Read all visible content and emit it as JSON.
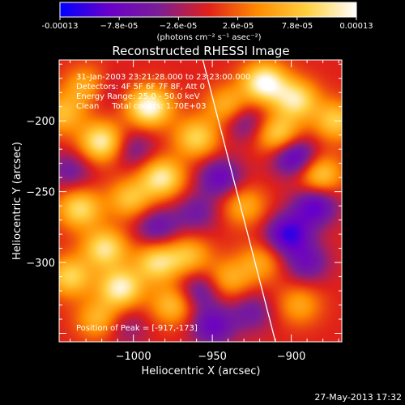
{
  "chart_data": {
    "type": "heatmap",
    "title": "Reconstructed RHESSI Image",
    "xlabel": "Heliocentric X (arcsec)",
    "ylabel": "Heliocentric Y (arcsec)",
    "xlim": [
      -1047,
      -868
    ],
    "ylim": [
      -356,
      -157
    ],
    "x_ticks": [
      -1000,
      -950,
      -900
    ],
    "x_tick_labels": [
      "−1000",
      "−950",
      "−900"
    ],
    "y_ticks": [
      -200,
      -250,
      -300
    ],
    "y_tick_labels": [
      "−200",
      "−250",
      "−300"
    ],
    "colorbar": {
      "range": [
        -0.00013,
        0.00013
      ],
      "tick_labels": [
        "-0.00013",
        "−7.8e-05",
        "−2.6e-05",
        "2.6e-05",
        "7.8e-05",
        "0.00013"
      ],
      "unit_label": "(photons cm⁻² s⁻¹ asec⁻²)",
      "colors": [
        "#0000ff",
        "#6a00c8",
        "#7a1e96",
        "#e0201a",
        "#ff8c00",
        "#ffd040",
        "#ffffff"
      ]
    },
    "annotations": [
      "31-Jan-2003 23:21:28.000 to 23:23:00.000",
      "Detectors: 4F 5F 6F 7F 8F, Att 0",
      "Energy Range: 25.0 - 50.0 keV",
      "Clean     Total counts: 1.70E+03"
    ],
    "peak_label": "Position of Peak = [-917,-173]",
    "peak": [
      -917,
      -173
    ],
    "limb_line": [
      [
        -956,
        -157
      ],
      [
        -910,
        -356
      ]
    ],
    "sources": [
      {
        "x": -1028,
        "y": -176,
        "amp": 0.8
      },
      {
        "x": -990,
        "y": -190,
        "amp": 1.0
      },
      {
        "x": -1020,
        "y": -215,
        "amp": 0.9
      },
      {
        "x": -982,
        "y": -240,
        "amp": 0.85
      },
      {
        "x": -1002,
        "y": -255,
        "amp": 0.6
      },
      {
        "x": -960,
        "y": -212,
        "amp": 0.7
      },
      {
        "x": -917,
        "y": -173,
        "amp": 1.0
      },
      {
        "x": -897,
        "y": -185,
        "amp": 0.8
      },
      {
        "x": -908,
        "y": -210,
        "amp": 0.75
      },
      {
        "x": -882,
        "y": -238,
        "amp": 0.7
      },
      {
        "x": -872,
        "y": -200,
        "amp": 0.65
      },
      {
        "x": -930,
        "y": -260,
        "amp": 0.5
      },
      {
        "x": -1034,
        "y": -262,
        "amp": 0.75
      },
      {
        "x": -1018,
        "y": -290,
        "amp": 0.8
      },
      {
        "x": -1040,
        "y": -310,
        "amp": 0.7
      },
      {
        "x": -1008,
        "y": -318,
        "amp": 0.9
      },
      {
        "x": -985,
        "y": -300,
        "amp": 0.75
      },
      {
        "x": -965,
        "y": -295,
        "amp": 0.55
      },
      {
        "x": -975,
        "y": -330,
        "amp": 0.6
      },
      {
        "x": -1022,
        "y": -340,
        "amp": 0.55
      },
      {
        "x": -940,
        "y": -312,
        "amp": 0.5
      },
      {
        "x": -920,
        "y": -300,
        "amp": 0.45
      },
      {
        "x": -895,
        "y": -330,
        "amp": 0.45
      },
      {
        "x": -940,
        "y": -190,
        "amp": 0.6
      },
      {
        "x": -1045,
        "y": -195,
        "amp": 0.55
      },
      {
        "x": -1022,
        "y": -178,
        "amp": -0.5
      },
      {
        "x": -1000,
        "y": -220,
        "amp": -0.4
      },
      {
        "x": -985,
        "y": -275,
        "amp": -0.5
      },
      {
        "x": -945,
        "y": -240,
        "amp": -0.6
      },
      {
        "x": -930,
        "y": -200,
        "amp": -0.5
      },
      {
        "x": -898,
        "y": -225,
        "amp": -0.8
      },
      {
        "x": -885,
        "y": -260,
        "amp": -0.7
      },
      {
        "x": -902,
        "y": -280,
        "amp": -0.8
      },
      {
        "x": -958,
        "y": -320,
        "amp": -0.5
      },
      {
        "x": -950,
        "y": -345,
        "amp": -0.6
      },
      {
        "x": -925,
        "y": -335,
        "amp": -0.4
      },
      {
        "x": -890,
        "y": -300,
        "amp": -0.5
      },
      {
        "x": -1040,
        "y": -235,
        "amp": -0.4
      },
      {
        "x": -1005,
        "y": -345,
        "amp": -0.3
      },
      {
        "x": -960,
        "y": -265,
        "amp": -0.4
      }
    ]
  },
  "footer": {
    "timestamp": "27-May-2013 17:32"
  }
}
